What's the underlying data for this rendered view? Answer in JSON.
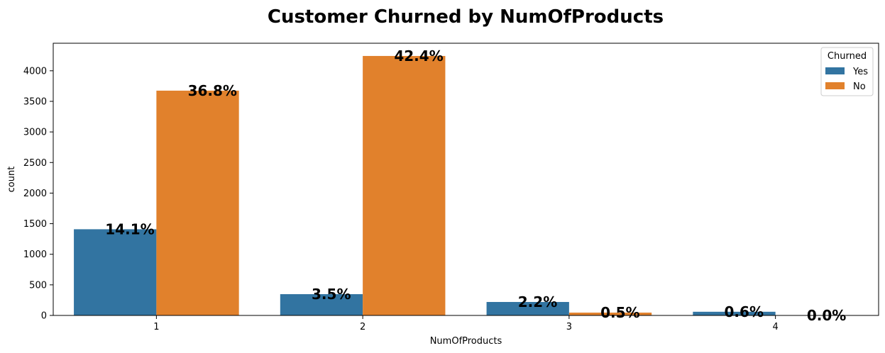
{
  "chart_data": {
    "type": "bar",
    "title": "Customer Churned by NumOfProducts",
    "xlabel": "NumOfProducts",
    "ylabel": "count",
    "categories": [
      "1",
      "2",
      "3",
      "4"
    ],
    "ylim": [
      0,
      4450
    ],
    "yticks": [
      0,
      500,
      1000,
      1500,
      2000,
      2500,
      3000,
      3500,
      4000
    ],
    "legend": {
      "title": "Churned",
      "placement": "top-right"
    },
    "series": [
      {
        "name": "Yes",
        "color": "#3274a1",
        "values": [
          1409,
          348,
          220,
          60
        ],
        "labels": [
          "14.1%",
          "3.5%",
          "2.2%",
          "0.6%"
        ]
      },
      {
        "name": "No",
        "color": "#e1812c",
        "values": [
          3675,
          4242,
          46,
          0
        ],
        "labels": [
          "36.8%",
          "42.4%",
          "0.5%",
          "0.0%"
        ]
      }
    ],
    "grid": false
  }
}
